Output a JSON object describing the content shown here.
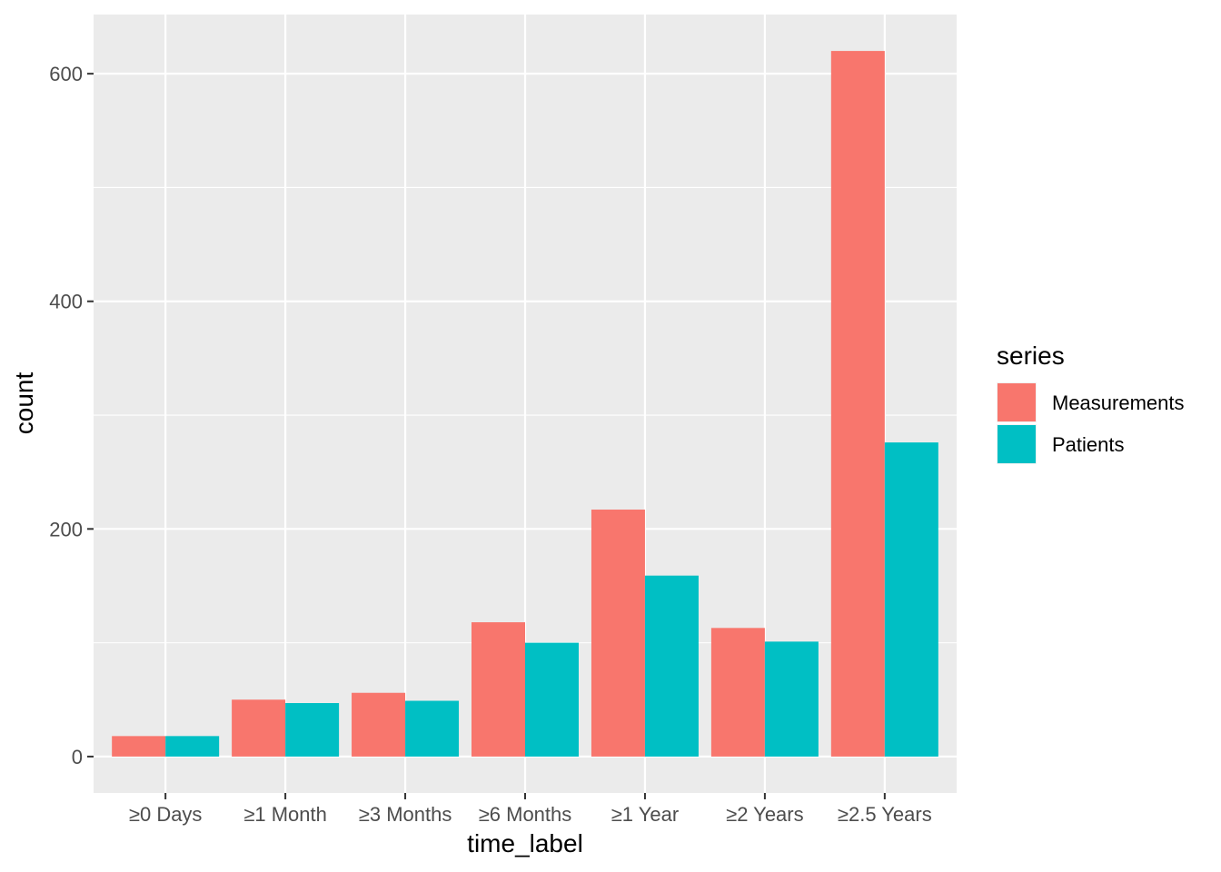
{
  "chart_data": {
    "type": "bar",
    "categories": [
      "≥0 Days",
      "≥1 Month",
      "≥3 Months",
      "≥6 Months",
      "≥1 Year",
      "≥2 Years",
      "≥2.5 Years"
    ],
    "series": [
      {
        "name": "Measurements",
        "color": "#F8766D",
        "values": [
          18,
          50,
          56,
          118,
          217,
          113,
          620
        ]
      },
      {
        "name": "Patients",
        "color": "#00BFC4",
        "values": [
          18,
          47,
          49,
          100,
          159,
          101,
          276
        ]
      }
    ],
    "xlabel": "time_label",
    "ylabel": "count",
    "legend_title": "series",
    "legend_position": "right",
    "ylim": [
      -32,
      652
    ],
    "y_ticks": [
      0,
      200,
      400,
      600
    ],
    "y_tick_labels": [
      "0",
      "200",
      "400",
      "600"
    ],
    "grid": true,
    "panel_background": "#EBEBEB",
    "grid_color": "#FFFFFF"
  }
}
